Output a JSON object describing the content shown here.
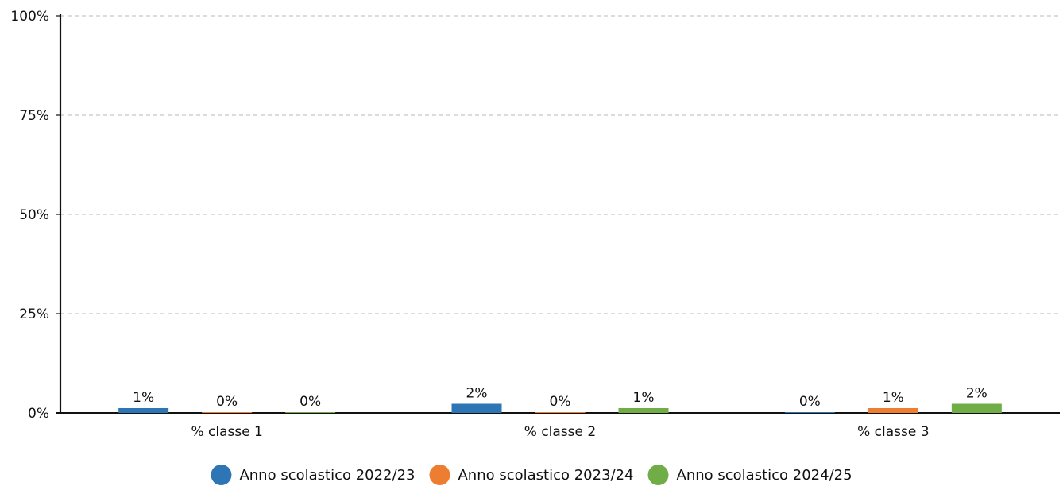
{
  "chart_data": {
    "type": "bar",
    "categories": [
      "% classe 1",
      "% classe 2",
      "% classe 3"
    ],
    "series": [
      {
        "name": "Anno scolastico 2022/23",
        "color": "#2e75b6",
        "values": [
          1.2,
          2.3,
          0.2
        ],
        "labels": [
          "1%",
          "2%",
          "0%"
        ]
      },
      {
        "name": "Anno scolastico 2023/24",
        "color": "#ed7d31",
        "values": [
          0.2,
          0.2,
          1.2
        ],
        "labels": [
          "0%",
          "0%",
          "1%"
        ]
      },
      {
        "name": "Anno scolastico 2024/25",
        "color": "#70ad47",
        "values": [
          0.2,
          1.2,
          2.3
        ],
        "labels": [
          "0%",
          "1%",
          "2%"
        ]
      }
    ],
    "ylim": [
      0,
      100
    ],
    "yticks": [
      0,
      25,
      50,
      75,
      100
    ],
    "ytick_labels": [
      "0%",
      "25%",
      "50%",
      "75%",
      "100%"
    ],
    "grid": true,
    "legend_position": "bottom"
  }
}
